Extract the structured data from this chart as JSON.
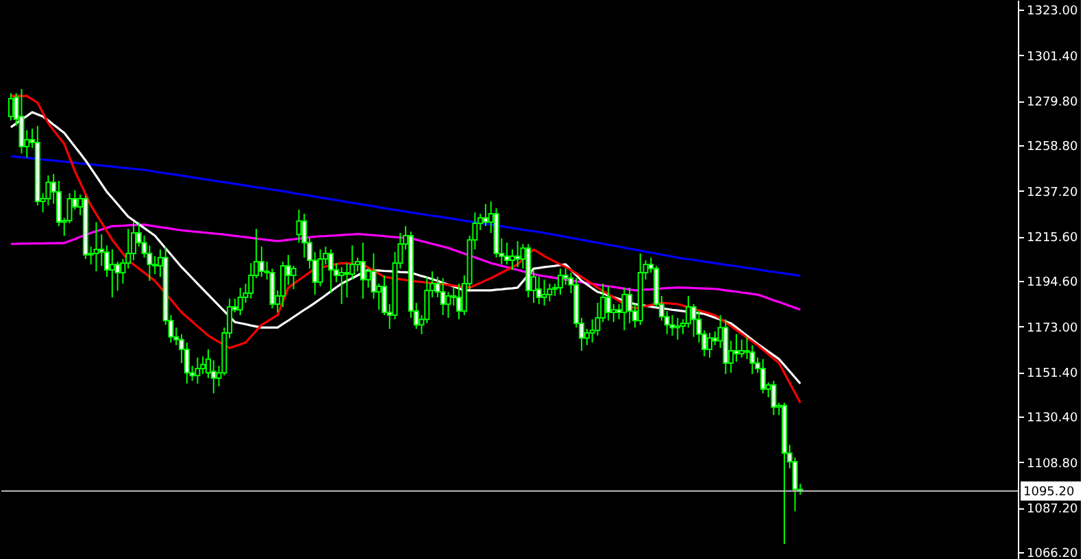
{
  "chart_data": {
    "type": "candlestick",
    "color": "#00ff00",
    "categories": [
      null,
      null,
      null,
      null,
      null,
      null,
      null,
      null,
      null,
      null,
      null,
      null,
      null,
      null,
      null,
      null,
      null,
      null,
      null,
      null,
      null,
      null,
      null,
      null,
      null,
      null,
      null,
      null,
      null,
      null,
      null,
      null,
      null,
      null,
      null,
      null,
      null,
      null,
      null,
      null,
      null,
      null,
      null,
      null,
      null,
      null,
      null,
      null,
      null,
      null,
      null,
      null,
      null,
      null,
      null,
      null,
      null,
      null,
      null,
      null,
      null,
      null,
      null,
      null,
      null,
      null,
      null,
      null,
      null,
      null,
      null,
      null,
      null,
      null,
      null,
      null,
      null,
      null,
      null,
      null,
      null,
      null,
      null,
      null,
      null,
      null,
      null,
      null,
      null,
      null,
      null,
      null,
      null,
      null,
      null,
      null,
      null,
      null,
      null,
      null,
      null,
      null,
      null,
      null,
      null,
      null,
      null,
      null,
      null,
      null,
      null,
      null,
      null,
      null,
      null,
      null,
      null,
      null,
      null,
      null,
      null,
      null,
      null,
      null,
      null,
      null,
      null,
      null,
      null,
      null,
      null,
      null,
      null,
      null,
      null,
      null,
      null,
      null,
      null,
      null,
      null,
      null,
      null,
      null,
      null,
      null,
      null,
      null,
      null,
      null,
      null,
      null,
      null,
      null,
      null,
      null,
      null,
      null,
      null,
      null,
      null,
      null,
      null,
      null,
      null,
      null,
      null,
      null,
      null,
      null,
      null,
      null,
      null,
      null,
      null,
      null,
      null,
      null,
      null,
      null,
      null,
      null,
      null,
      null,
      null,
      null,
      null,
      null
    ],
    "ohlc": [
      [
        1272.4,
        1283.4,
        1270.5,
        1280.8
      ],
      [
        1281.5,
        1283.4,
        1268.0,
        1271.1
      ],
      [
        1272.4,
        1285.4,
        1254.9,
        1258.1
      ],
      [
        1258.1,
        1265.9,
        1252.9,
        1261.4
      ],
      [
        1261.4,
        1266.6,
        1257.5,
        1260.1
      ],
      [
        1260.1,
        1267.9,
        1230.3,
        1232.2
      ],
      [
        1232.2,
        1236.1,
        1227.0,
        1233.5
      ],
      [
        1233.5,
        1244.5,
        1230.3,
        1241.2
      ],
      [
        1241.2,
        1245.2,
        1231.1,
        1236.7
      ],
      [
        1236.7,
        1241.9,
        1220.5,
        1222.4
      ],
      [
        1222.4,
        1224.4,
        1215.9,
        1223.1
      ],
      [
        1223.1,
        1236.1,
        1221.8,
        1233.5
      ],
      [
        1233.5,
        1237.4,
        1228.3,
        1229.6
      ],
      [
        1229.6,
        1235.4,
        1225.7,
        1233.5
      ],
      [
        1233.5,
        1235.0,
        1205.0,
        1206.9
      ],
      [
        1206.9,
        1210.8,
        1202.4,
        1207.6
      ],
      [
        1207.6,
        1222.4,
        1199.1,
        1209.5
      ],
      [
        1209.5,
        1216.6,
        1201.7,
        1208.2
      ],
      [
        1208.2,
        1211.4,
        1196.5,
        1199.8
      ],
      [
        1199.8,
        1209.5,
        1186.8,
        1202.4
      ],
      [
        1202.4,
        1203.7,
        1189.9,
        1198.5
      ],
      [
        1198.5,
        1205.0,
        1193.3,
        1203.0
      ],
      [
        1203.0,
        1219.2,
        1200.4,
        1207.6
      ],
      [
        1207.6,
        1222.4,
        1204.3,
        1217.3
      ],
      [
        1217.3,
        1222.4,
        1210.8,
        1212.7
      ],
      [
        1212.7,
        1216.0,
        1205.6,
        1207.6
      ],
      [
        1207.6,
        1211.4,
        1194.6,
        1202.4
      ],
      [
        1202.4,
        1206.3,
        1197.8,
        1201.7
      ],
      [
        1201.7,
        1209.5,
        1196.5,
        1205.6
      ],
      [
        1205.6,
        1210.8,
        1173.8,
        1175.8
      ],
      [
        1175.8,
        1178.4,
        1165.4,
        1168.1
      ],
      [
        1168.1,
        1172.5,
        1164.2,
        1166.8
      ],
      [
        1166.8,
        1169.4,
        1155.7,
        1162.2
      ],
      [
        1162.2,
        1165.4,
        1146.0,
        1151.1
      ],
      [
        1151.1,
        1154.4,
        1147.3,
        1149.8
      ],
      [
        1149.8,
        1158.3,
        1146.0,
        1153.1
      ],
      [
        1153.1,
        1158.9,
        1150.5,
        1155.0
      ],
      [
        1151.1,
        1162.2,
        1148.6,
        1157.6
      ],
      [
        1151.7,
        1157.0,
        1141.4,
        1148.6
      ],
      [
        1148.6,
        1154.4,
        1144.7,
        1151.1
      ],
      [
        1151.1,
        1172.5,
        1149.8,
        1170.0
      ],
      [
        1170.0,
        1186.2,
        1167.5,
        1182.3
      ],
      [
        1182.3,
        1186.2,
        1179.7,
        1180.9
      ],
      [
        1180.9,
        1191.4,
        1178.4,
        1186.8
      ],
      [
        1186.8,
        1193.3,
        1184.2,
        1188.8
      ],
      [
        1188.8,
        1203.0,
        1186.2,
        1197.2
      ],
      [
        1197.2,
        1219.2,
        1195.9,
        1203.7
      ],
      [
        1203.7,
        1210.8,
        1196.5,
        1199.1
      ],
      [
        1199.1,
        1203.7,
        1195.2,
        1198.5
      ],
      [
        1198.5,
        1200.4,
        1181.6,
        1183.6
      ],
      [
        1183.6,
        1190.1,
        1179.7,
        1187.5
      ],
      [
        1187.5,
        1203.7,
        1182.3,
        1201.7
      ],
      [
        1201.7,
        1206.9,
        1192.7,
        1197.2
      ],
      [
        1197.2,
        1201.7,
        1190.7,
        1200.4
      ],
      [
        1216.6,
        1228.3,
        1212.7,
        1222.9
      ],
      [
        1222.9,
        1226.4,
        1205.6,
        1212.7
      ],
      [
        1212.7,
        1214.7,
        1200.4,
        1204.3
      ],
      [
        1204.3,
        1208.2,
        1188.1,
        1194.0
      ],
      [
        1194.0,
        1209.5,
        1192.0,
        1205.0
      ],
      [
        1205.0,
        1210.8,
        1202.4,
        1207.6
      ],
      [
        1207.6,
        1209.5,
        1188.8,
        1199.8
      ],
      [
        1199.8,
        1203.0,
        1194.0,
        1197.2
      ],
      [
        1197.2,
        1201.1,
        1183.6,
        1198.5
      ],
      [
        1198.5,
        1203.0,
        1186.8,
        1197.8
      ],
      [
        1197.8,
        1211.4,
        1195.2,
        1202.4
      ],
      [
        1202.4,
        1205.6,
        1199.1,
        1203.7
      ],
      [
        1203.7,
        1212.7,
        1186.2,
        1195.2
      ],
      [
        1195.2,
        1200.4,
        1191.4,
        1199.1
      ],
      [
        1199.1,
        1207.6,
        1186.2,
        1189.4
      ],
      [
        1189.4,
        1193.3,
        1180.9,
        1192.0
      ],
      [
        1192.0,
        1197.2,
        1178.4,
        1179.7
      ],
      [
        1179.7,
        1183.6,
        1171.9,
        1178.4
      ],
      [
        1178.4,
        1208.2,
        1176.4,
        1203.0
      ],
      [
        1203.0,
        1217.3,
        1200.4,
        1212.0
      ],
      [
        1212.0,
        1220.5,
        1209.5,
        1216.0
      ],
      [
        1216.0,
        1217.9,
        1177.1,
        1180.3
      ],
      [
        1180.3,
        1184.2,
        1171.9,
        1173.8
      ],
      [
        1173.8,
        1178.4,
        1169.4,
        1176.4
      ],
      [
        1176.4,
        1196.5,
        1174.5,
        1190.1
      ],
      [
        1190.1,
        1199.1,
        1186.8,
        1193.3
      ],
      [
        1193.3,
        1196.5,
        1186.8,
        1189.4
      ],
      [
        1189.4,
        1195.9,
        1178.4,
        1183.6
      ],
      [
        1183.6,
        1189.4,
        1177.1,
        1187.5
      ],
      [
        1187.5,
        1191.4,
        1182.9,
        1186.8
      ],
      [
        1186.8,
        1193.3,
        1176.4,
        1180.3
      ],
      [
        1180.3,
        1197.2,
        1178.4,
        1193.3
      ],
      [
        1193.3,
        1216.0,
        1190.7,
        1214.0
      ],
      [
        1214.0,
        1227.0,
        1209.5,
        1221.8
      ],
      [
        1221.8,
        1226.4,
        1218.6,
        1224.4
      ],
      [
        1224.4,
        1230.9,
        1220.5,
        1222.4
      ],
      [
        1222.4,
        1232.2,
        1217.3,
        1226.4
      ],
      [
        1226.4,
        1229.0,
        1205.6,
        1207.6
      ],
      [
        1207.6,
        1214.7,
        1202.4,
        1206.3
      ],
      [
        1206.3,
        1212.7,
        1202.4,
        1204.3
      ],
      [
        1204.3,
        1209.5,
        1199.8,
        1206.3
      ],
      [
        1206.3,
        1213.4,
        1201.1,
        1205.0
      ],
      [
        1205.0,
        1212.0,
        1200.4,
        1210.1
      ],
      [
        1210.1,
        1212.0,
        1186.8,
        1190.1
      ],
      [
        1190.1,
        1199.8,
        1184.2,
        1196.5
      ],
      [
        1190.7,
        1196.5,
        1183.6,
        1186.8
      ],
      [
        1186.8,
        1195.2,
        1182.9,
        1188.1
      ],
      [
        1188.1,
        1193.3,
        1184.9,
        1190.7
      ],
      [
        1190.7,
        1193.3,
        1187.5,
        1191.4
      ],
      [
        1191.4,
        1200.4,
        1188.1,
        1197.2
      ],
      [
        1197.2,
        1200.4,
        1192.7,
        1195.9
      ],
      [
        1195.9,
        1198.5,
        1188.8,
        1192.7
      ],
      [
        1192.7,
        1195.9,
        1172.5,
        1174.5
      ],
      [
        1174.5,
        1177.1,
        1161.5,
        1167.5
      ],
      [
        1167.5,
        1171.9,
        1164.2,
        1170.0
      ],
      [
        1170.0,
        1176.4,
        1165.4,
        1171.2
      ],
      [
        1171.2,
        1184.2,
        1168.7,
        1177.1
      ],
      [
        1177.1,
        1193.3,
        1175.1,
        1186.8
      ],
      [
        1186.8,
        1192.0,
        1175.8,
        1179.7
      ],
      [
        1179.7,
        1183.6,
        1175.1,
        1180.9
      ],
      [
        1180.9,
        1183.6,
        1176.4,
        1179.7
      ],
      [
        1179.7,
        1191.4,
        1171.2,
        1188.1
      ],
      [
        1188.1,
        1191.4,
        1174.5,
        1180.3
      ],
      [
        1180.3,
        1183.6,
        1172.5,
        1175.8
      ],
      [
        1175.8,
        1207.6,
        1173.8,
        1198.5
      ],
      [
        1198.5,
        1204.3,
        1195.2,
        1202.4
      ],
      [
        1202.4,
        1205.6,
        1198.5,
        1200.4
      ],
      [
        1200.4,
        1201.7,
        1182.3,
        1183.6
      ],
      [
        1183.6,
        1187.5,
        1175.8,
        1177.7
      ],
      [
        1177.7,
        1180.3,
        1169.4,
        1173.8
      ],
      [
        1173.8,
        1178.4,
        1168.7,
        1172.5
      ],
      [
        1172.5,
        1177.1,
        1166.8,
        1173.2
      ],
      [
        1173.2,
        1176.4,
        1169.4,
        1174.5
      ],
      [
        1174.5,
        1187.5,
        1172.5,
        1182.3
      ],
      [
        1182.3,
        1183.6,
        1168.1,
        1176.4
      ],
      [
        1176.4,
        1180.3,
        1165.4,
        1169.4
      ],
      [
        1169.4,
        1171.2,
        1158.9,
        1162.2
      ],
      [
        1162.2,
        1170.0,
        1158.3,
        1167.5
      ],
      [
        1167.5,
        1170.7,
        1164.2,
        1166.2
      ],
      [
        1166.2,
        1178.4,
        1162.8,
        1172.5
      ],
      [
        1172.5,
        1176.4,
        1150.5,
        1155.7
      ],
      [
        1155.7,
        1166.2,
        1151.1,
        1161.5
      ],
      [
        1161.5,
        1169.4,
        1156.3,
        1160.2
      ],
      [
        1160.2,
        1166.8,
        1158.3,
        1161.5
      ],
      [
        1161.5,
        1168.1,
        1157.6,
        1160.9
      ],
      [
        1160.9,
        1164.2,
        1150.5,
        1155.7
      ],
      [
        1155.7,
        1158.3,
        1151.1,
        1153.1
      ],
      [
        1153.1,
        1157.6,
        1141.4,
        1143.4
      ],
      [
        1143.4,
        1146.6,
        1139.5,
        1145.3
      ],
      [
        1145.3,
        1147.3,
        1131.1,
        1134.9
      ],
      [
        1134.9,
        1136.9,
        1131.1,
        1135.6
      ],
      [
        1135.6,
        1136.9,
        1070.1,
        1113.1
      ],
      [
        1113.1,
        1117.0,
        1105.9,
        1109.0
      ],
      [
        1109.0,
        1111.0,
        1085.6,
        1095.9
      ],
      [
        1095.9,
        1098.6,
        1093.4,
        1095.2
      ],
      null,
      null,
      null,
      null,
      null,
      null,
      null,
      null,
      null,
      null,
      null,
      null,
      null,
      null,
      null,
      null,
      null,
      null,
      null,
      null,
      null,
      null,
      null,
      null,
      null,
      null,
      null,
      null,
      null,
      null,
      null,
      null,
      null,
      null,
      null,
      null,
      null,
      null,
      null
    ],
    "series": [
      {
        "type": "line",
        "color": "#0000ff",
        "values": [
          1253.6,
          1253.3,
          1253.1,
          1252.8,
          1252.6,
          1252.3,
          1252.0,
          1251.8,
          1251.5,
          1251.3,
          1251.0,
          1250.7,
          1250.5,
          1250.2,
          1250.0,
          1249.7,
          1249.4,
          1249.2,
          1248.9,
          1248.7,
          1248.4,
          1248.1,
          1247.9,
          1247.6,
          1247.4,
          1247.1,
          1246.7,
          1246.3,
          1245.9,
          1245.5,
          1245.2,
          1244.8,
          1244.4,
          1244.0,
          1243.6,
          1243.2,
          1242.8,
          1242.4,
          1242.0,
          1241.6,
          1241.3,
          1240.9,
          1240.5,
          1240.1,
          1239.7,
          1239.3,
          1238.9,
          1238.5,
          1238.2,
          1237.8,
          1237.4,
          1237.0,
          1236.6,
          1236.1,
          1235.7,
          1235.3,
          1234.9,
          1234.5,
          1234.0,
          1233.6,
          1233.2,
          1232.8,
          1232.4,
          1231.9,
          1231.5,
          1231.1,
          1230.7,
          1230.3,
          1229.9,
          1229.4,
          1229.0,
          1228.6,
          1228.2,
          1227.8,
          1227.4,
          1227.0,
          1226.6,
          1226.2,
          1225.8,
          1225.4,
          1225.1,
          1224.7,
          1224.3,
          1223.9,
          1223.5,
          1223.1,
          1222.7,
          1222.3,
          1221.9,
          1221.5,
          1221.2,
          1220.8,
          1220.4,
          1220.0,
          1219.6,
          1219.2,
          1218.8,
          1218.4,
          1218.1,
          1217.7,
          1217.3,
          1216.8,
          1216.4,
          1215.9,
          1215.4,
          1215.0,
          1214.5,
          1214.0,
          1213.6,
          1213.1,
          1212.6,
          1212.2,
          1211.7,
          1211.2,
          1210.8,
          1210.3,
          1209.8,
          1209.4,
          1208.9,
          1208.4,
          1208.0,
          1207.5,
          1207.0,
          1206.6,
          1206.1,
          1205.6,
          1205.2,
          1204.9,
          1204.5,
          1204.1,
          1203.7,
          1203.4,
          1203.0,
          1202.6,
          1202.2,
          1201.9,
          1201.5,
          1201.1,
          1200.7,
          1200.4,
          1200.0,
          1199.6,
          1199.2,
          1198.9,
          1198.5,
          1198.1,
          1197.7,
          1197.4,
          1197.0,
          null,
          null,
          null,
          null,
          null,
          null,
          null,
          null,
          null,
          null,
          null,
          null,
          null,
          null,
          null,
          null,
          null,
          null,
          null,
          null,
          null,
          null,
          null,
          null,
          null,
          null,
          null,
          null,
          null,
          null,
          null,
          null,
          null,
          null,
          null,
          null,
          null,
          null,
          null
        ]
      },
      {
        "type": "line",
        "color": "#ff00ff",
        "values": [
          1212.1,
          1212.1,
          1212.2,
          1212.2,
          1212.3,
          1212.3,
          1212.3,
          1212.4,
          1212.4,
          1212.5,
          1212.5,
          1213.5,
          1214.4,
          1215.4,
          1216.3,
          1217.3,
          1218.1,
          1218.9,
          1219.7,
          1220.5,
          1220.6,
          1220.7,
          1220.9,
          1221.0,
          1221.1,
          1221.2,
          1220.8,
          1220.4,
          1220.0,
          1219.7,
          1219.3,
          1218.9,
          1218.5,
          1218.3,
          1218.0,
          1217.8,
          1217.5,
          1217.3,
          1217.0,
          1216.8,
          1216.5,
          1216.2,
          1215.9,
          1215.6,
          1215.3,
          1215.0,
          1214.6,
          1214.3,
          1214.0,
          1213.7,
          1213.4,
          1213.7,
          1214.0,
          1214.3,
          1214.6,
          1214.9,
          1215.2,
          1215.5,
          1215.7,
          1215.8,
          1216.0,
          1216.1,
          1216.3,
          1216.5,
          1216.6,
          1216.8,
          1216.6,
          1216.4,
          1216.2,
          1216.0,
          1215.8,
          1215.5,
          1215.3,
          1215.1,
          1214.9,
          1214.7,
          1214.1,
          1213.4,
          1212.8,
          1212.1,
          1211.5,
          1210.8,
          1210.2,
          1209.3,
          1208.4,
          1207.5,
          1206.6,
          1205.7,
          1204.8,
          1203.9,
          1203.0,
          1202.4,
          1201.7,
          1201.1,
          1200.4,
          1199.8,
          1199.1,
          1198.5,
          1197.8,
          1197.2,
          1196.8,
          1196.4,
          1196.0,
          1195.6,
          1195.2,
          1194.8,
          1194.4,
          1194.0,
          1193.6,
          1193.2,
          1192.8,
          1192.4,
          1192.1,
          1191.7,
          1191.3,
          1190.9,
          1190.5,
          1190.1,
          1190.3,
          1190.5,
          1190.6,
          1190.8,
          1191.0,
          1191.2,
          1191.3,
          1191.5,
          1191.4,
          1191.3,
          1191.2,
          1191.1,
          1191.0,
          1190.9,
          1190.8,
          1190.5,
          1190.1,
          1189.8,
          1189.5,
          1189.1,
          1188.8,
          1188.4,
          1188.1,
          1187.2,
          1186.3,
          1185.4,
          1184.6,
          1183.7,
          1182.8,
          1181.9,
          1181.0,
          null,
          null,
          null,
          null,
          null,
          null,
          null,
          null,
          null,
          null,
          null,
          null,
          null,
          null,
          null,
          null,
          null,
          null,
          null,
          null,
          null,
          null,
          null,
          null,
          null,
          null,
          null,
          null,
          null,
          null,
          null,
          null,
          null,
          null,
          null,
          null,
          null,
          null,
          null
        ]
      },
      {
        "type": "line",
        "color": "#ffffff",
        "values": [
          1267.3,
          1269.1,
          1270.9,
          1272.6,
          1274.4,
          1273.4,
          1272.4,
          1270.5,
          1268.5,
          1266.6,
          1264.6,
          1261.4,
          1258.1,
          1254.9,
          1251.6,
          1247.9,
          1244.2,
          1240.4,
          1236.7,
          1233.8,
          1230.9,
          1227.9,
          1225.0,
          1223.2,
          1221.4,
          1219.6,
          1217.8,
          1216.0,
          1213.0,
          1210.0,
          1207.1,
          1204.1,
          1201.1,
          1198.5,
          1195.9,
          1193.3,
          1190.7,
          1188.1,
          1185.5,
          1182.9,
          1180.3,
          1177.7,
          1175.1,
          1174.6,
          1174.1,
          1173.5,
          1173.0,
          1172.5,
          1172.5,
          1172.5,
          1172.5,
          1174.2,
          1175.8,
          1177.5,
          1179.2,
          1180.9,
          1182.5,
          1184.2,
          1186.0,
          1187.8,
          1189.7,
          1191.5,
          1193.3,
          1194.6,
          1195.9,
          1197.2,
          1198.5,
          1199.8,
          1199.6,
          1199.5,
          1199.3,
          1199.2,
          1199.0,
          1198.8,
          1198.7,
          1198.5,
          1197.7,
          1196.9,
          1196.2,
          1195.4,
          1194.6,
          1193.7,
          1192.8,
          1191.9,
          1191.0,
          1190.1,
          1190.1,
          1190.1,
          1190.1,
          1190.1,
          1190.1,
          1190.4,
          1190.6,
          1190.9,
          1191.1,
          1191.4,
          1194.4,
          1197.4,
          1200.4,
          1200.7,
          1201.1,
          1201.4,
          1201.7,
          1202.1,
          1202.4,
          1199.8,
          1197.2,
          1194.6,
          1192.9,
          1191.1,
          1189.4,
          1188.6,
          1187.7,
          1186.9,
          1186.1,
          1185.3,
          1184.4,
          1183.6,
          1183.2,
          1182.8,
          1182.4,
          1182.0,
          1181.6,
          1181.3,
          1180.9,
          1180.6,
          1180.3,
          1180.0,
          1179.6,
          1179.3,
          1179.0,
          1178.1,
          1177.2,
          1176.3,
          1175.4,
          1174.5,
          1172.6,
          1170.6,
          1168.7,
          1166.7,
          1164.8,
          1163.0,
          1161.2,
          1159.4,
          1157.6,
          1154.7,
          1151.8,
          1148.9,
          1146.0,
          null,
          null,
          null,
          null,
          null,
          null,
          null,
          null,
          null,
          null,
          null,
          null,
          null,
          null,
          null,
          null,
          null,
          null,
          null,
          null,
          null,
          null,
          null,
          null,
          null,
          null,
          null,
          null,
          null,
          null,
          null,
          null,
          null,
          null,
          null,
          null,
          null,
          null,
          null
        ]
      },
      {
        "type": "line",
        "color": "#ff0000",
        "values": [
          1282.1,
          1282.1,
          1282.1,
          1282.1,
          1280.5,
          1278.9,
          1274.1,
          1269.2,
          1265.9,
          1262.7,
          1259.4,
          1253.0,
          1246.5,
          1241.1,
          1235.7,
          1230.3,
          1226.2,
          1222.2,
          1218.1,
          1214.0,
          1210.8,
          1207.5,
          1204.3,
          1202.4,
          1200.4,
          1198.5,
          1196.5,
          1194.6,
          1191.6,
          1188.6,
          1185.7,
          1182.7,
          1179.7,
          1177.5,
          1175.3,
          1173.1,
          1170.9,
          1168.7,
          1167.2,
          1165.7,
          1164.3,
          1162.8,
          1163.7,
          1164.5,
          1165.4,
          1168.2,
          1171.0,
          1173.8,
          1175.3,
          1176.9,
          1178.4,
          1184.9,
          1191.4,
          1193.2,
          1195.0,
          1196.8,
          1198.6,
          1200.4,
          1200.9,
          1201.4,
          1202.0,
          1202.5,
          1203.0,
          1202.9,
          1202.7,
          1202.6,
          1202.4,
          1200.9,
          1199.5,
          1198.0,
          1196.5,
          1196.1,
          1195.7,
          1195.4,
          1195.0,
          1194.6,
          1194.3,
          1194.1,
          1193.8,
          1193.5,
          1193.2,
          1193.0,
          1192.7,
          1192.4,
          1192.0,
          1191.7,
          1191.4,
          1192.5,
          1193.6,
          1194.8,
          1195.9,
          1197.2,
          1198.5,
          1199.8,
          1201.1,
          1202.4,
          1204.8,
          1207.1,
          1209.5,
          1207.9,
          1206.3,
          1205.0,
          1203.7,
          1202.4,
          1201.1,
          1199.8,
          1198.1,
          1196.4,
          1194.8,
          1193.1,
          1191.4,
          1189.8,
          1188.3,
          1186.7,
          1185.2,
          1183.6,
          1182.6,
          1181.6,
          1182.1,
          1182.6,
          1183.2,
          1183.7,
          1184.2,
          1184.0,
          1183.8,
          1183.6,
          1182.9,
          1182.1,
          1181.4,
          1180.6,
          1179.9,
          1179.1,
          1178.4,
          1176.7,
          1174.9,
          1173.2,
          1171.4,
          1169.6,
          1167.7,
          1165.9,
          1164.1,
          1162.0,
          1159.9,
          1157.8,
          1155.7,
          1151.0,
          1146.3,
          1141.6,
          1136.9,
          null,
          null,
          null,
          null,
          null,
          null,
          null,
          null,
          null,
          null,
          null,
          null,
          null,
          null,
          null,
          null,
          null,
          null,
          null,
          null,
          null,
          null,
          null,
          null,
          null,
          null,
          null,
          null,
          null,
          null,
          null,
          null,
          null,
          null,
          null,
          null,
          null,
          null,
          null
        ]
      }
    ],
    "ylim": [
      1063.0,
      1327.5
    ],
    "yticks": [
      {
        "value": 1066.2,
        "label": "1066.20"
      },
      {
        "value": 1087.2,
        "label": "1087.20"
      },
      {
        "value": 1108.8,
        "label": "1108.80"
      },
      {
        "value": 1130.4,
        "label": "1130.40"
      },
      {
        "value": 1151.4,
        "label": "1151.40"
      },
      {
        "value": 1173.0,
        "label": "1173.00"
      },
      {
        "value": 1194.6,
        "label": "1194.60"
      },
      {
        "value": 1215.6,
        "label": "1215.60"
      },
      {
        "value": 1237.2,
        "label": "1237.20"
      },
      {
        "value": 1258.8,
        "label": "1258.80"
      },
      {
        "value": 1279.8,
        "label": "1279.80"
      },
      {
        "value": 1301.4,
        "label": "1301.40"
      },
      {
        "value": 1323.0,
        "label": "1323.00"
      }
    ],
    "ref_lines": [
      {
        "axis": "y",
        "value": 1095.2,
        "label": "1095.20",
        "color": "#c0c0c0"
      }
    ],
    "tick_labels": "y"
  }
}
